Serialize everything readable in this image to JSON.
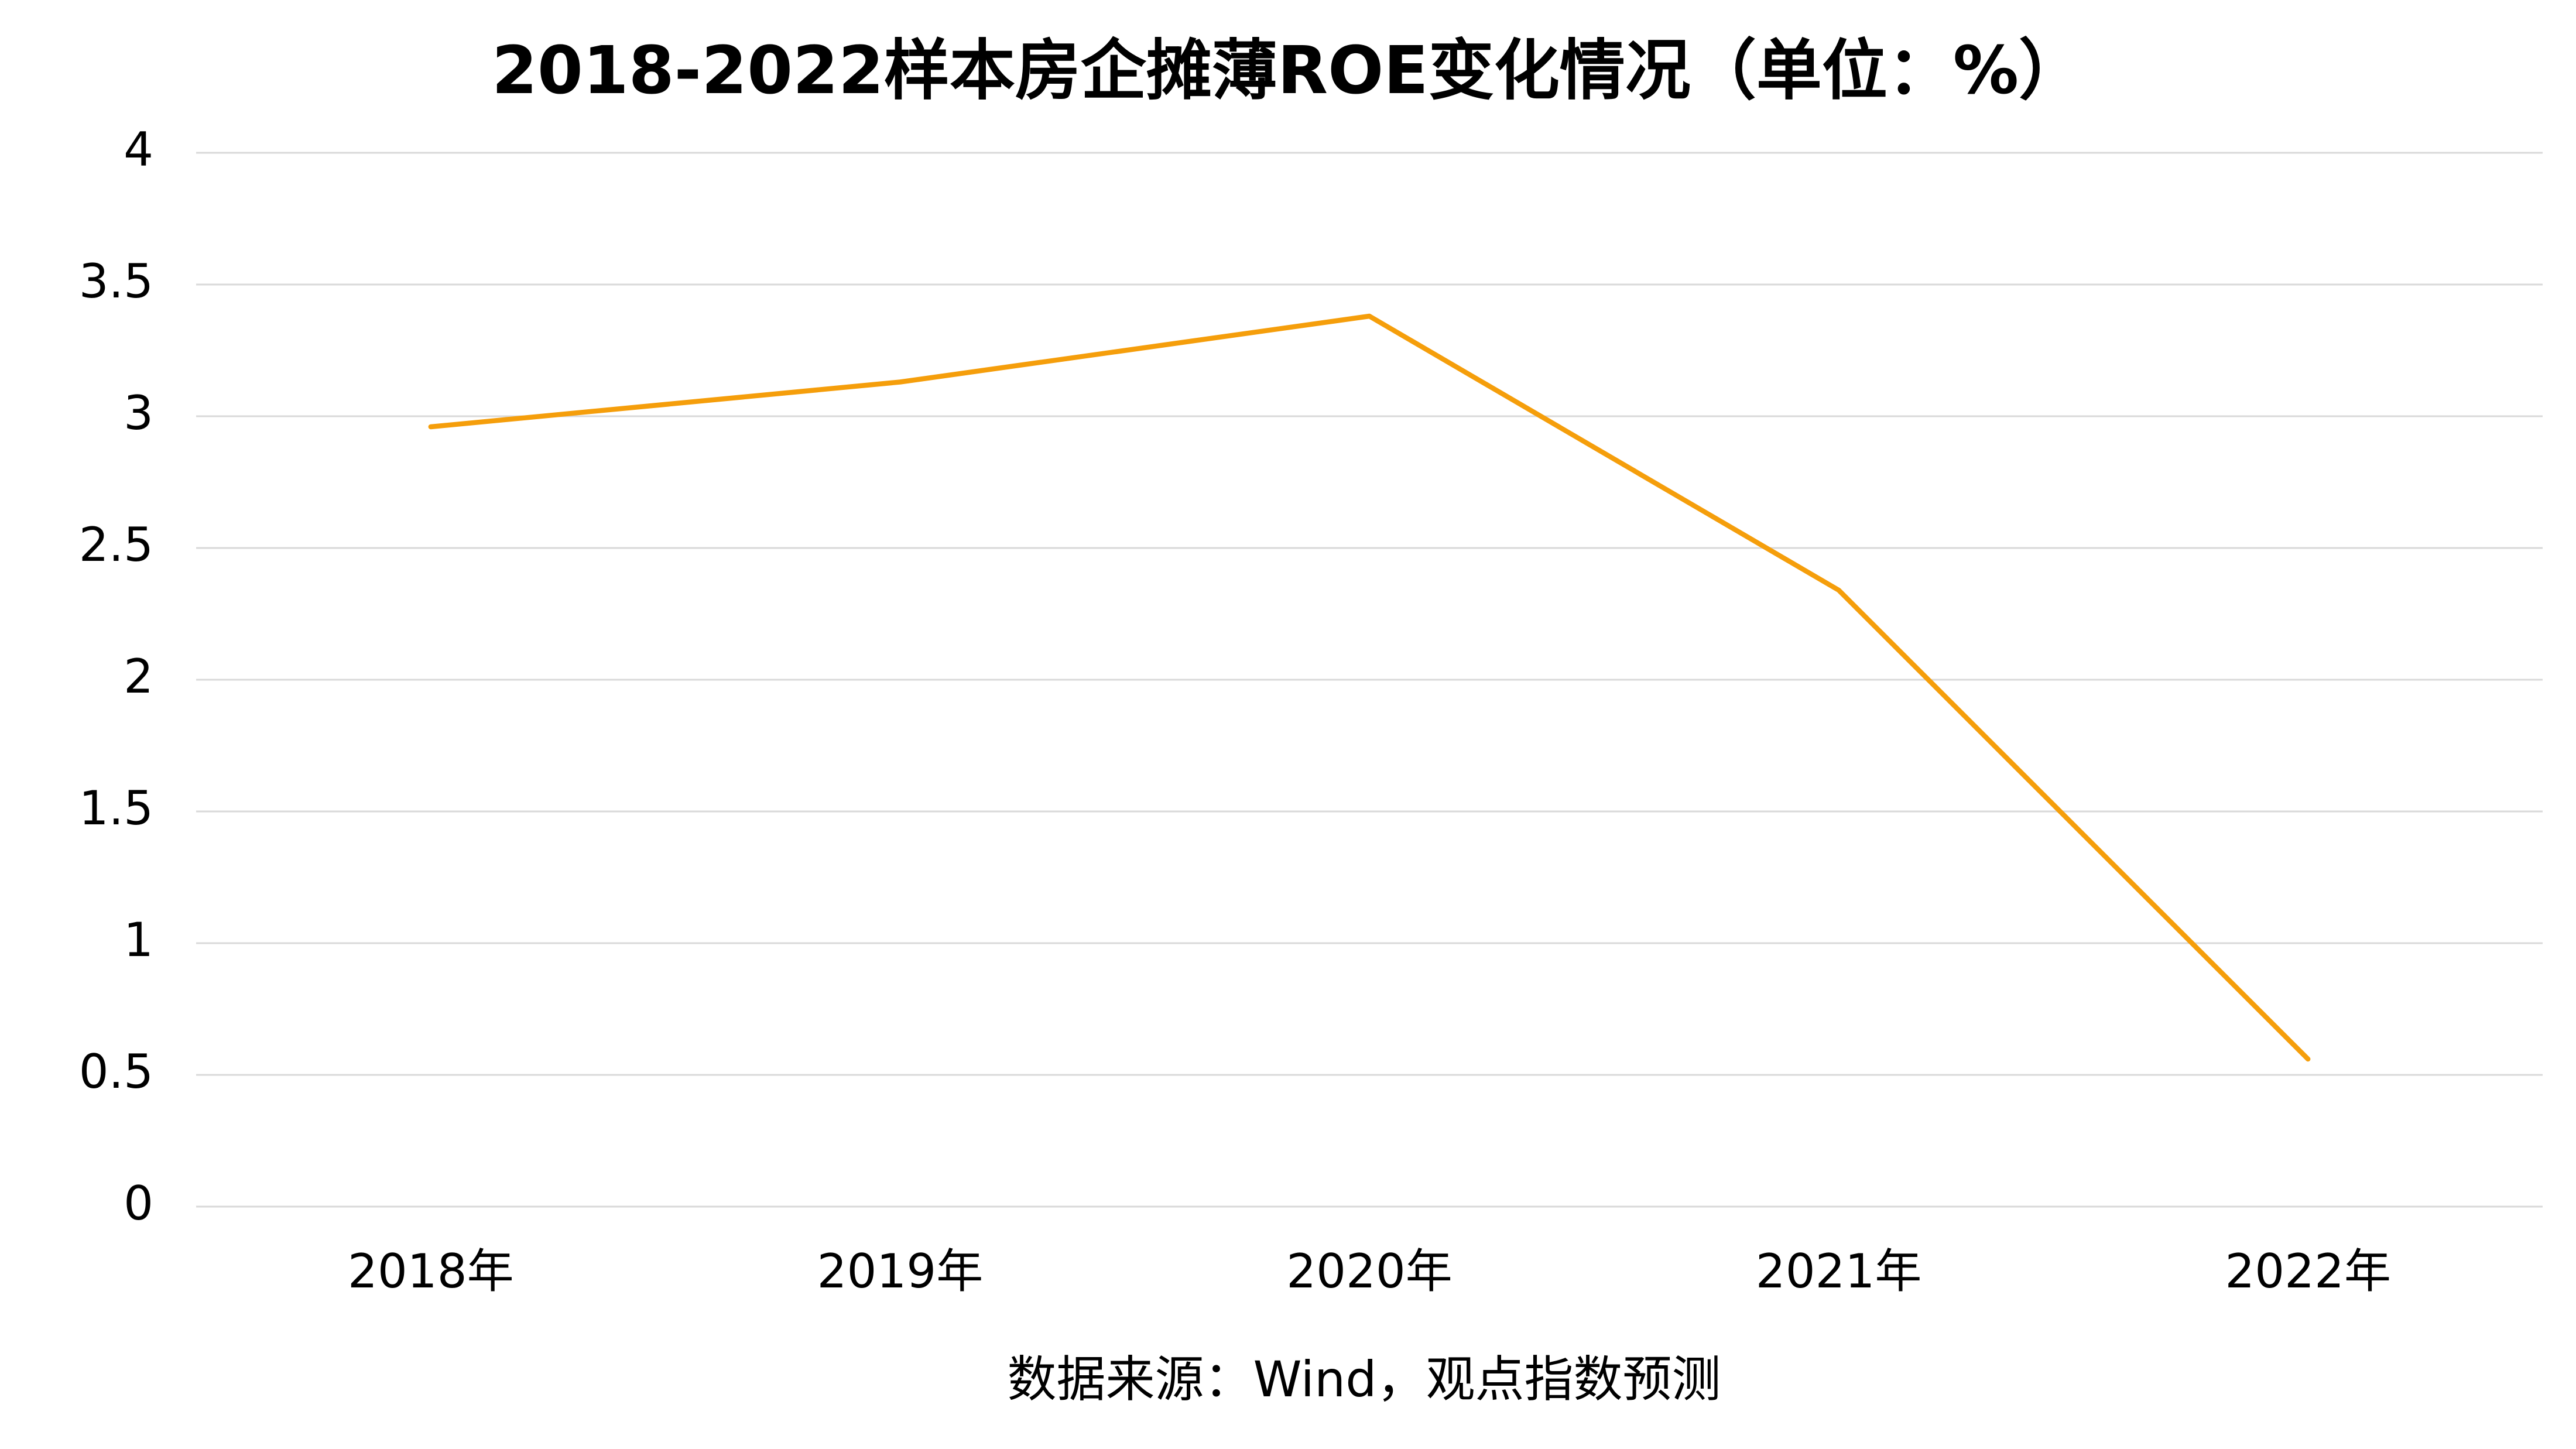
{
  "chart_data": {
    "type": "line",
    "title": "2018-2022样本房企摊薄ROE变化情况（单位：%）",
    "categories": [
      "2018年",
      "2019年",
      "2020年",
      "2021年",
      "2022年"
    ],
    "series": [
      {
        "name": "摊薄ROE",
        "color": "#f59e0b",
        "values": [
          2.96,
          3.13,
          3.38,
          2.34,
          0.56
        ]
      }
    ],
    "ylim": [
      0,
      4
    ],
    "yticks": [
      0,
      0.5,
      1,
      1.5,
      2,
      2.5,
      3,
      3.5,
      4
    ],
    "grid": true,
    "source": "数据来源：Wind，观点指数预测"
  }
}
